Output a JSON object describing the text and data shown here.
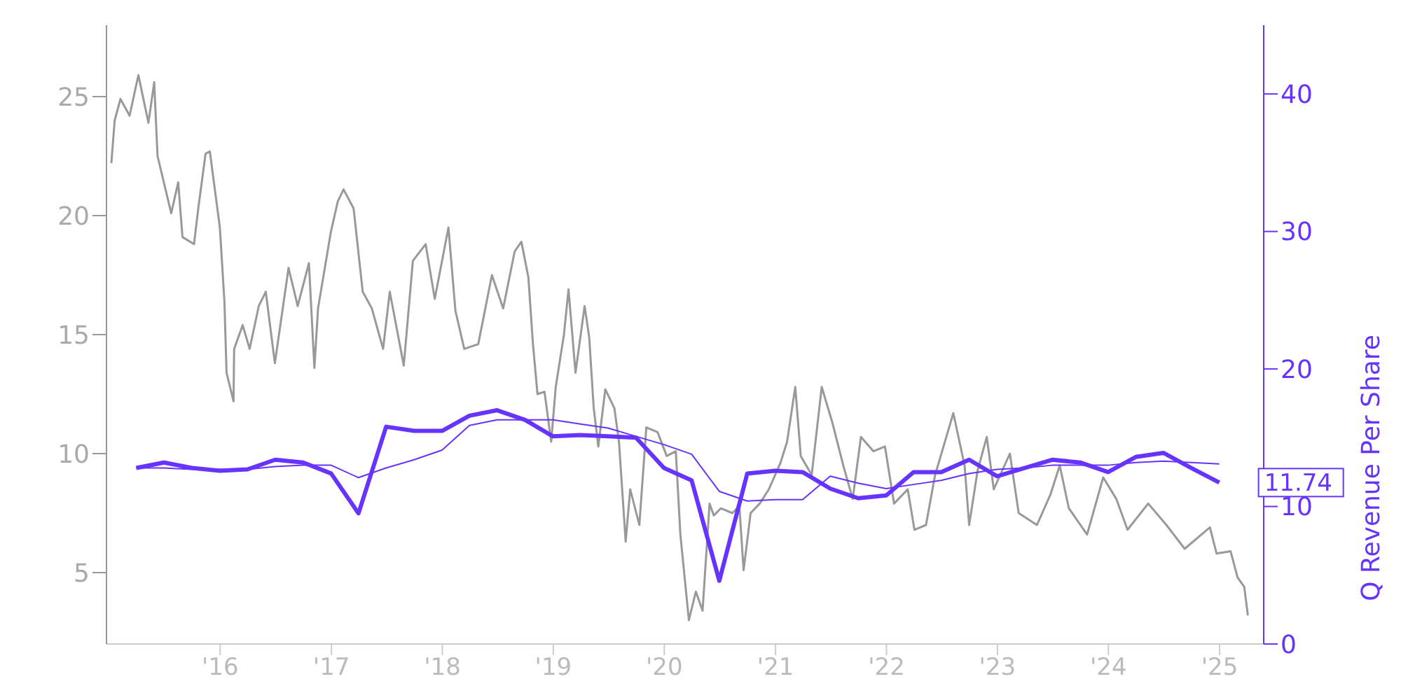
{
  "chart_data": {
    "type": "line",
    "y2label": "Q Revenue Per Share",
    "grid": false,
    "xlim": [
      "2014-12-23",
      "2025-05-26"
    ],
    "xticks": [
      {
        "value": "2016-01-01",
        "label": "'16"
      },
      {
        "value": "2017-01-01",
        "label": "'17"
      },
      {
        "value": "2018-01-01",
        "label": "'18"
      },
      {
        "value": "2019-01-01",
        "label": "'19"
      },
      {
        "value": "2020-01-01",
        "label": "'20"
      },
      {
        "value": "2021-01-01",
        "label": "'21"
      },
      {
        "value": "2022-01-01",
        "label": "'22"
      },
      {
        "value": "2023-01-01",
        "label": "'23"
      },
      {
        "value": "2024-01-01",
        "label": "'24"
      },
      {
        "value": "2025-01-01",
        "label": "'25"
      }
    ],
    "ylim": [
      2,
      28
    ],
    "yticks": [
      5,
      10,
      15,
      20,
      25
    ],
    "y2lim": [
      0,
      45
    ],
    "y2ticks": [
      0,
      10,
      20,
      30,
      40
    ],
    "x": [
      "2015-03-31",
      "2015-06-30",
      "2015-09-30",
      "2015-12-31",
      "2016-03-31",
      "2016-06-30",
      "2016-09-30",
      "2016-12-31",
      "2017-03-31",
      "2017-06-30",
      "2017-09-30",
      "2017-12-31",
      "2018-03-31",
      "2018-06-30",
      "2018-09-30",
      "2018-12-31",
      "2019-03-31",
      "2019-06-30",
      "2019-09-30",
      "2019-12-31",
      "2020-03-31",
      "2020-06-30",
      "2020-09-30",
      "2020-12-31",
      "2021-03-31",
      "2021-06-30",
      "2021-09-30",
      "2021-12-31",
      "2022-03-31",
      "2022-06-30",
      "2022-09-30",
      "2022-12-31",
      "2023-03-31",
      "2023-06-30",
      "2023-09-30",
      "2023-12-31",
      "2024-03-31",
      "2024-06-30",
      "2024-09-30",
      "2024-12-31"
    ],
    "series": [
      {
        "color": "#999999",
        "x": [
          "2015-01-08",
          "2015-01-19",
          "2015-02-07",
          "2015-03-09",
          "2015-04-07",
          "2015-05-10",
          "2015-05-29",
          "2015-06-09",
          "2015-07-24",
          "2015-08-16",
          "2015-08-30",
          "2015-10-07",
          "2015-10-22",
          "2015-11-14",
          "2015-11-28",
          "2015-12-31",
          "2016-01-15",
          "2016-01-22",
          "2016-02-14",
          "2016-02-16",
          "2016-03-15",
          "2016-04-07",
          "2016-05-07",
          "2016-05-30",
          "2016-06-29",
          "2016-08-13",
          "2016-09-12",
          "2016-10-19",
          "2016-11-06",
          "2016-11-18",
          "2016-12-30",
          "2017-01-22",
          "2017-02-10",
          "2017-03-15",
          "2017-04-14",
          "2017-05-14",
          "2017-06-20",
          "2017-07-12",
          "2017-08-27",
          "2017-09-26",
          "2017-11-07",
          "2017-12-07",
          "2018-01-21",
          "2018-02-13",
          "2018-03-14",
          "2018-04-29",
          "2018-06-13",
          "2018-07-20",
          "2018-08-27",
          "2018-09-18",
          "2018-10-11",
          "2018-10-26",
          "2018-11-10",
          "2018-12-03",
          "2018-12-25",
          "2019-01-09",
          "2019-02-05",
          "2019-02-20",
          "2019-03-15",
          "2019-04-14",
          "2019-04-29",
          "2019-05-14",
          "2019-05-29",
          "2019-06-21",
          "2019-07-21",
          "2019-08-05",
          "2019-08-27",
          "2019-09-11",
          "2019-10-11",
          "2019-11-03",
          "2019-12-10",
          "2020-01-09",
          "2020-02-08",
          "2020-02-23",
          "2020-03-22",
          "2020-04-14",
          "2020-05-06",
          "2020-05-29",
          "2020-06-12",
          "2020-07-05",
          "2020-08-12",
          "2020-09-04",
          "2020-09-18",
          "2020-10-11",
          "2020-11-10",
          "2020-12-10",
          "2021-01-17",
          "2021-02-08",
          "2021-03-07",
          "2021-03-25",
          "2021-04-30",
          "2021-06-02",
          "2021-07-07",
          "2021-08-14",
          "2021-09-12",
          "2021-10-09",
          "2021-11-19",
          "2021-12-27",
          "2022-01-26",
          "2022-03-12",
          "2022-04-03",
          "2022-05-11",
          "2022-06-10",
          "2022-08-09",
          "2022-09-15",
          "2022-09-30",
          "2022-10-28",
          "2022-11-27",
          "2022-12-20",
          "2023-02-11",
          "2023-03-12",
          "2023-05-11",
          "2023-06-25",
          "2023-07-25",
          "2023-08-24",
          "2023-10-23",
          "2023-12-15",
          "2024-01-27",
          "2024-03-04",
          "2024-05-11",
          "2024-07-10",
          "2024-09-08",
          "2024-11-30",
          "2024-12-22",
          "2025-02-06",
          "2025-03-01",
          "2025-03-23",
          "2025-04-04"
        ],
        "values": [
          22.2,
          24.0,
          24.9,
          24.2,
          25.9,
          23.9,
          25.6,
          22.5,
          20.1,
          21.4,
          19.1,
          18.8,
          20.4,
          22.6,
          22.7,
          19.5,
          16.4,
          13.4,
          12.2,
          14.4,
          15.4,
          14.4,
          16.2,
          16.8,
          13.8,
          17.8,
          16.2,
          18.0,
          13.6,
          16.1,
          19.3,
          20.6,
          21.1,
          20.3,
          16.8,
          16.1,
          14.4,
          16.8,
          13.7,
          18.1,
          18.8,
          16.5,
          19.5,
          16.0,
          14.4,
          14.6,
          17.5,
          16.1,
          18.5,
          18.9,
          17.4,
          14.6,
          12.5,
          12.6,
          10.5,
          12.8,
          15.0,
          16.9,
          13.4,
          16.2,
          14.9,
          11.9,
          10.3,
          12.7,
          11.9,
          10.5,
          6.3,
          8.5,
          7.0,
          11.1,
          10.9,
          9.9,
          10.1,
          6.6,
          3.0,
          4.2,
          3.4,
          7.9,
          7.4,
          7.7,
          7.5,
          7.8,
          5.1,
          7.5,
          7.9,
          8.5,
          9.6,
          10.5,
          12.8,
          9.9,
          9.1,
          12.8,
          11.3,
          9.4,
          8.1,
          10.7,
          10.1,
          10.3,
          7.9,
          8.5,
          6.8,
          7.0,
          9.1,
          11.7,
          9.5,
          7.0,
          9.3,
          10.7,
          8.5,
          10.0,
          7.5,
          7.0,
          8.3,
          9.5,
          7.7,
          6.6,
          9.0,
          8.1,
          6.8,
          7.9,
          7.0,
          6.0,
          6.9,
          5.8,
          5.9,
          4.8,
          4.4,
          3.2
        ]
      },
      {
        "color": "#6633ff",
        "axis": "y2",
        "values": [
          12.8,
          12.8,
          12.7,
          12.7,
          12.7,
          12.9,
          13.0,
          13.0,
          12.1,
          12.8,
          13.4,
          14.1,
          15.9,
          16.3,
          16.3,
          16.3,
          16.0,
          15.7,
          15.1,
          14.5,
          13.8,
          11.1,
          10.4,
          10.5,
          10.5,
          12.2,
          11.7,
          11.3,
          11.6,
          11.9,
          12.4,
          12.7,
          12.8,
          13.0,
          13.0,
          13.0,
          13.2,
          13.3,
          13.2,
          13.1
        ]
      },
      {
        "color": "#6633ff",
        "axis": "y2",
        "values": [
          12.8,
          13.2,
          12.8,
          12.6,
          12.7,
          13.4,
          13.2,
          12.4,
          9.5,
          15.8,
          15.5,
          15.5,
          16.6,
          17.0,
          16.3,
          15.1,
          15.2,
          15.1,
          15.0,
          12.8,
          11.9,
          4.6,
          12.4,
          12.6,
          12.5,
          11.3,
          10.6,
          10.8,
          12.5,
          12.5,
          13.4,
          12.2,
          12.8,
          13.4,
          13.2,
          12.5,
          13.6,
          13.9,
          12.8,
          11.74
        ],
        "value_labels": [
          null,
          null,
          null,
          null,
          null,
          null,
          null,
          null,
          null,
          null,
          null,
          null,
          null,
          null,
          null,
          null,
          null,
          null,
          null,
          null,
          null,
          null,
          null,
          null,
          null,
          null,
          null,
          null,
          null,
          null,
          null,
          null,
          null,
          null,
          null,
          null,
          null,
          null,
          null,
          "11.74"
        ]
      }
    ]
  }
}
